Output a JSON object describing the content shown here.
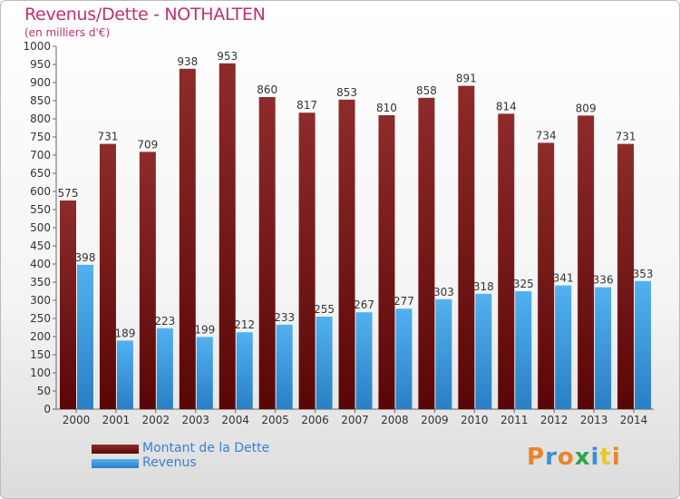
{
  "header": {
    "title": "Revenus/Dette - NOTHALTEN",
    "subtitle": "(en milliers d'€)"
  },
  "chart_data": {
    "type": "bar",
    "categories": [
      "2000",
      "2001",
      "2002",
      "2003",
      "2004",
      "2005",
      "2006",
      "2007",
      "2008",
      "2009",
      "2010",
      "2011",
      "2012",
      "2013",
      "2014"
    ],
    "series": [
      {
        "name": "Montant de la Dette",
        "color": "#7a1a1a",
        "values": [
          575,
          731,
          709,
          938,
          953,
          860,
          817,
          853,
          810,
          858,
          891,
          814,
          734,
          809,
          731
        ]
      },
      {
        "name": "Revenus",
        "color": "#3d9be0",
        "values": [
          398,
          189,
          223,
          199,
          212,
          233,
          255,
          267,
          277,
          303,
          318,
          325,
          341,
          336,
          353
        ]
      }
    ],
    "ylim": [
      0,
      1000
    ],
    "ytick_step": 50,
    "grid": false,
    "legend": "bottom-left"
  },
  "legend": {
    "items": [
      {
        "label": "Montant de la Dette",
        "color": "#7a1a1a"
      },
      {
        "label": "Revenus",
        "color": "#3d9be0"
      }
    ]
  },
  "logo": {
    "text": "Proxiti",
    "colors": [
      "#e8842a",
      "#3a8fd8",
      "#e8842a",
      "#2aa84a",
      "#3a8fd8",
      "#e8c82a",
      "#e8842a"
    ]
  }
}
